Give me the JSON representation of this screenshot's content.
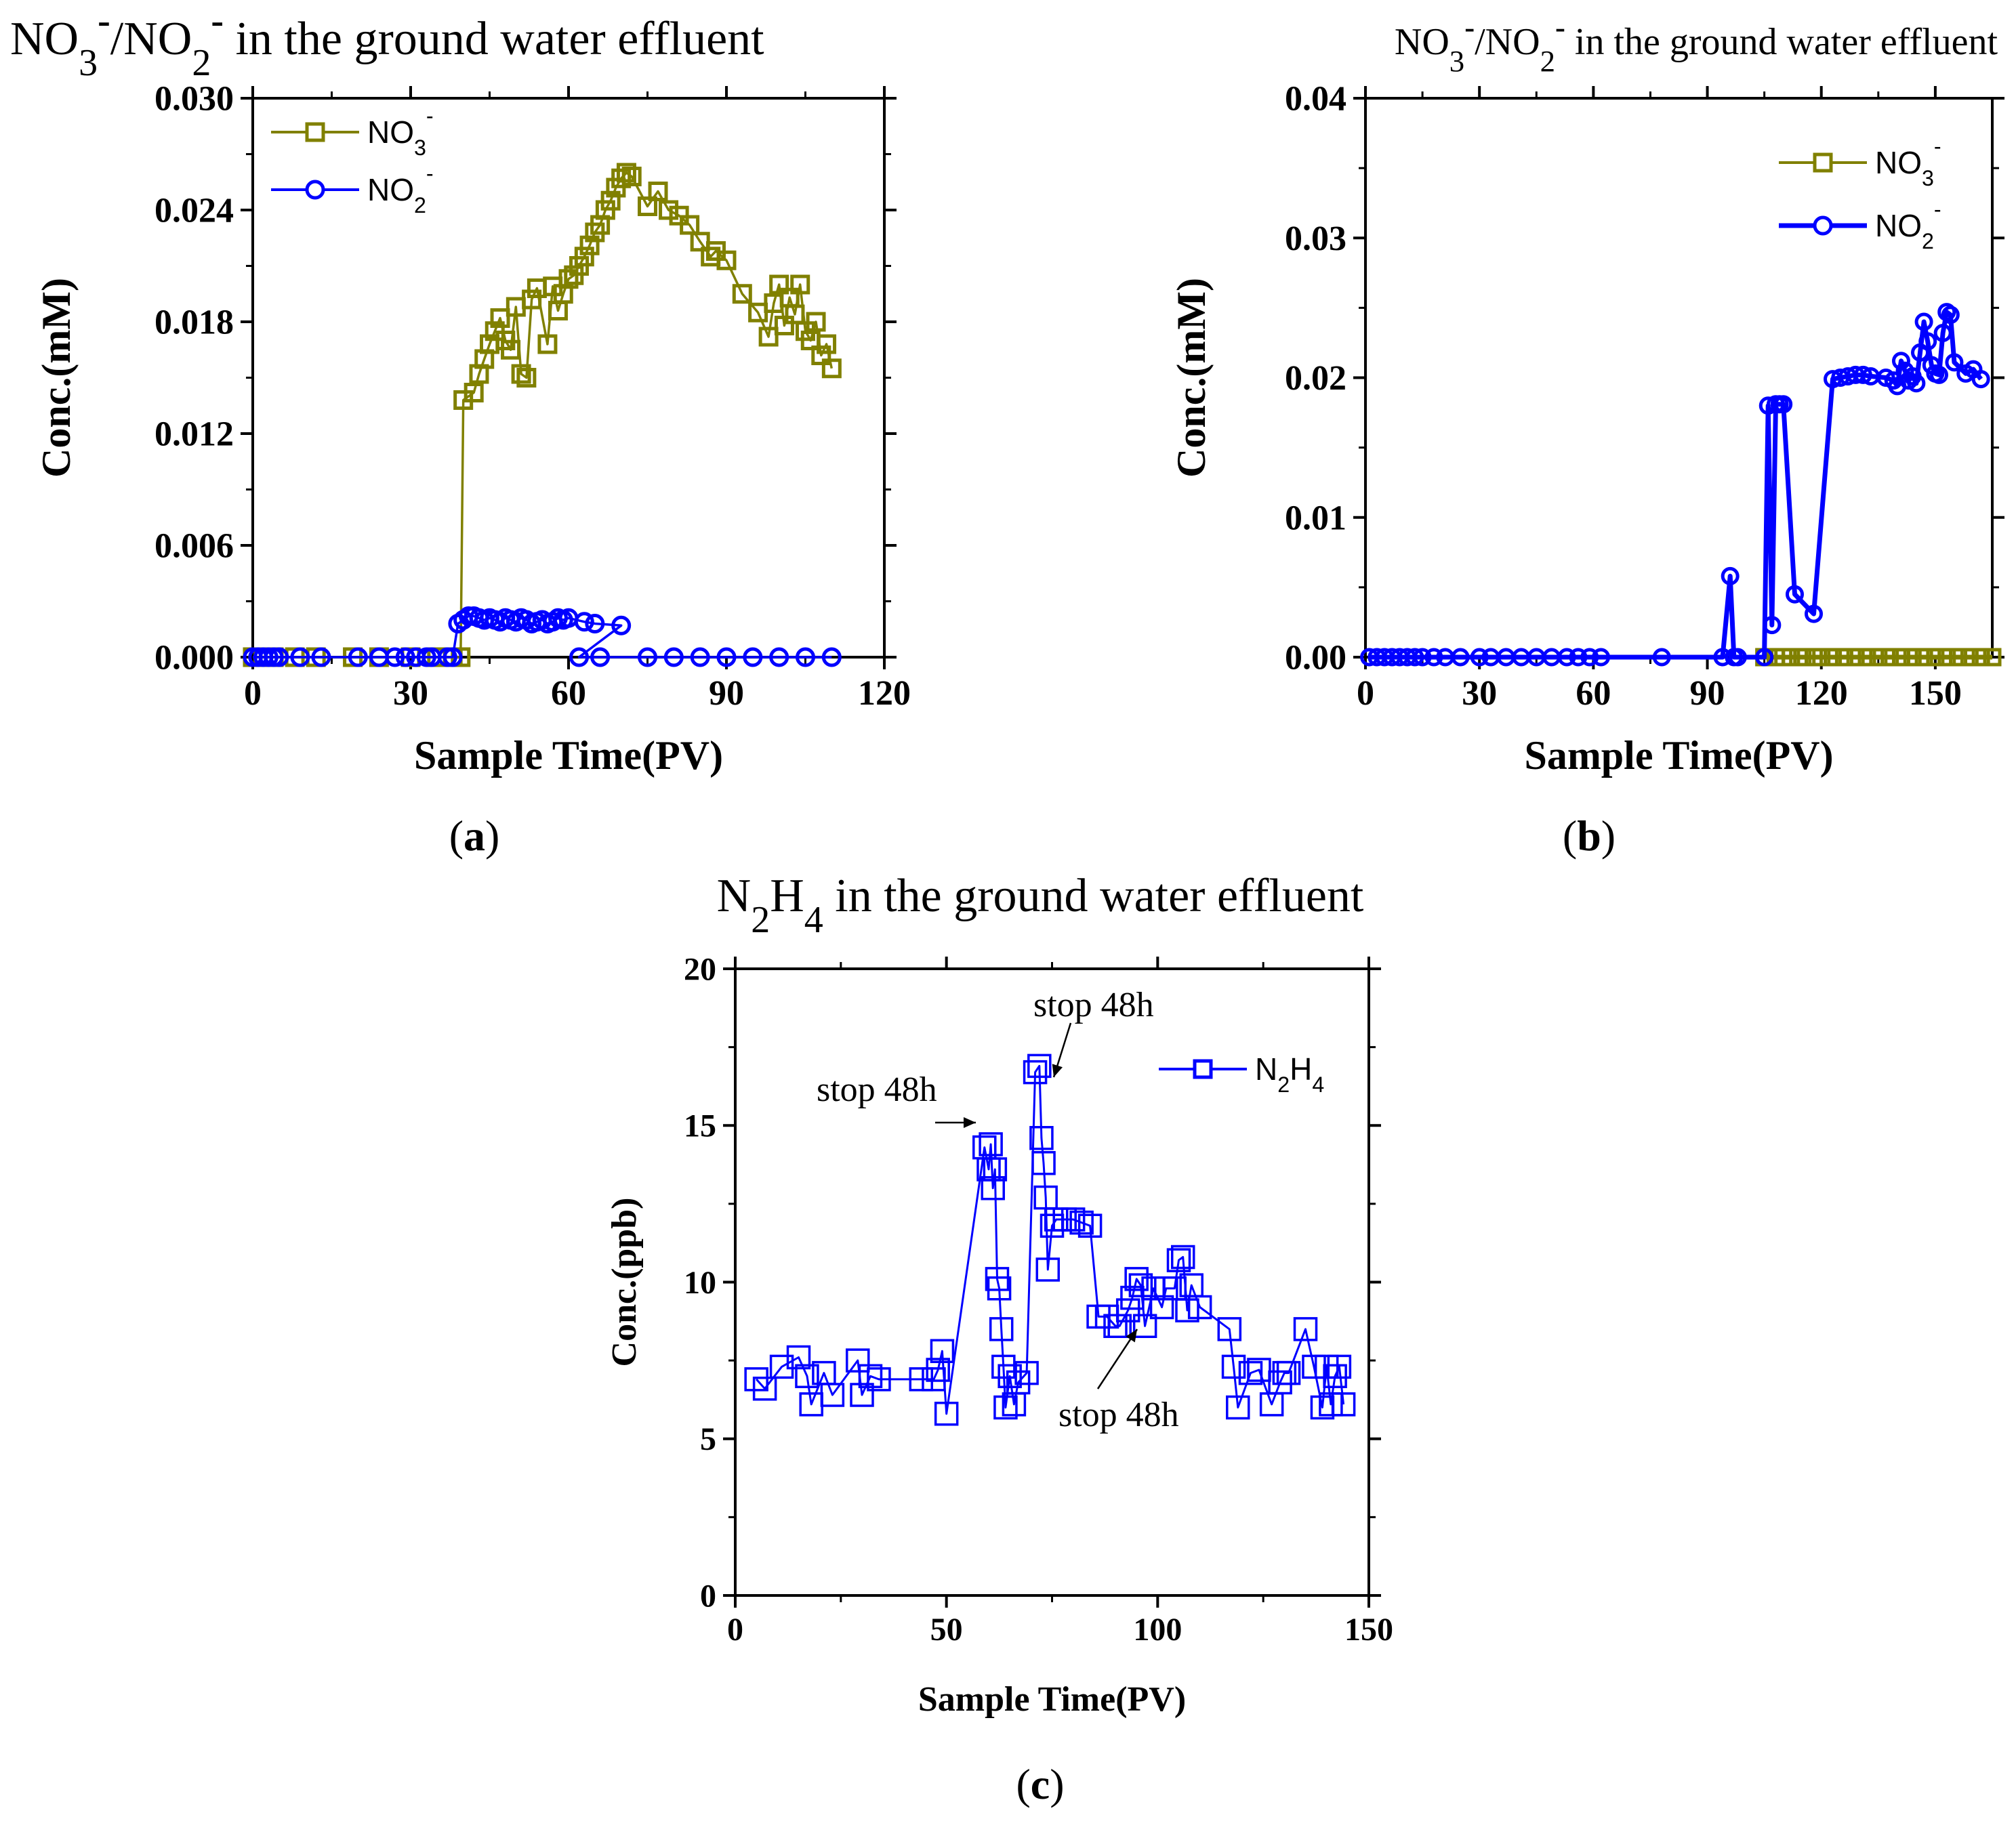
{
  "figure": {
    "panel_labels": [
      "(a)",
      "(b)",
      "(c)"
    ]
  },
  "chart_data": [
    {
      "panel": "a",
      "type": "line",
      "title": "NO3⁻/NO2⁻ in the ground water effluent",
      "title_parts": {
        "pre": "NO",
        "sub1": "3",
        "sup1": "-",
        "mid": "/NO",
        "sub2": "2",
        "sup2": "-",
        "post": " in the ground water effluent"
      },
      "xlabel": "Sample Time(PV)",
      "ylabel": "Conc.(mM)",
      "xlim": [
        0,
        120
      ],
      "ylim": [
        0,
        0.03
      ],
      "xticks": [
        "0",
        "30",
        "60",
        "90",
        "120"
      ],
      "yticks": [
        "0.000",
        "0.006",
        "0.012",
        "0.018",
        "0.024",
        "0.030"
      ],
      "legend": [
        {
          "label": "NO",
          "sub": "3",
          "sup": "-",
          "color": "#808000",
          "marker": "square"
        },
        {
          "label": "NO",
          "sub": "2",
          "sup": "-",
          "color": "#0000ff",
          "marker": "circle"
        }
      ],
      "legend_position": "top-left",
      "series": [
        {
          "name": "NO3-",
          "color": "#808000",
          "marker": "square",
          "x": [
            0,
            2,
            4,
            8,
            12,
            19,
            24,
            30,
            35,
            38,
            39.5,
            40,
            42,
            43,
            44,
            45,
            46,
            47,
            48,
            49,
            50,
            51,
            52,
            53,
            54,
            56,
            57,
            58,
            59,
            60,
            61,
            62,
            63,
            64,
            65,
            66,
            67,
            68,
            69,
            70,
            71,
            72,
            75,
            77,
            79,
            81,
            83,
            85,
            87,
            88,
            90,
            93,
            96,
            98,
            99,
            100,
            101,
            102,
            103,
            104,
            105,
            106,
            107,
            108,
            109,
            110
          ],
          "y": [
            0,
            0,
            0,
            0,
            0,
            0,
            0,
            0,
            0,
            0,
            0,
            0.0138,
            0.0142,
            0.0152,
            0.016,
            0.0168,
            0.0175,
            0.0182,
            0.017,
            0.0165,
            0.0188,
            0.0152,
            0.015,
            0.0192,
            0.0198,
            0.0168,
            0.0199,
            0.0186,
            0.0195,
            0.0203,
            0.0205,
            0.021,
            0.0215,
            0.0221,
            0.0228,
            0.0232,
            0.024,
            0.0245,
            0.0252,
            0.0257,
            0.026,
            0.0258,
            0.0242,
            0.025,
            0.024,
            0.0237,
            0.0232,
            0.0223,
            0.0215,
            0.0218,
            0.0213,
            0.0195,
            0.0185,
            0.0172,
            0.019,
            0.02,
            0.0178,
            0.0193,
            0.0184,
            0.02,
            0.0175,
            0.017,
            0.018,
            0.0162,
            0.0168,
            0.0155
          ]
        },
        {
          "name": "NO2-",
          "color": "#0000ff",
          "marker": "circle",
          "x": [
            0,
            1,
            2,
            3,
            4,
            5,
            9,
            13,
            20,
            24,
            27,
            29,
            31,
            33,
            34,
            37,
            38,
            39,
            40,
            41,
            42,
            43,
            44,
            45,
            46,
            47,
            48,
            49,
            50,
            51,
            52,
            53,
            54,
            55,
            56,
            57,
            58,
            59,
            60,
            63,
            65,
            70,
            62,
            66,
            75,
            80,
            85,
            90,
            95,
            100,
            105,
            110
          ],
          "y": [
            0,
            0,
            0,
            0,
            0,
            0,
            0,
            0,
            0,
            0,
            0,
            0,
            0,
            0,
            0,
            0,
            0,
            0.0018,
            0.002,
            0.0022,
            0.0022,
            0.0021,
            0.002,
            0.0021,
            0.002,
            0.0019,
            0.0021,
            0.002,
            0.0019,
            0.0021,
            0.002,
            0.0018,
            0.0019,
            0.002,
            0.0018,
            0.0019,
            0.0021,
            0.002,
            0.0021,
            0.0019,
            0.0018,
            0.0017,
            0,
            0,
            0,
            0,
            0,
            0,
            0,
            0,
            0,
            0
          ]
        }
      ]
    },
    {
      "panel": "b",
      "type": "line",
      "title": "NO3⁻/NO2⁻ in the ground water effluent",
      "title_parts": {
        "pre": "NO",
        "sub1": "3",
        "sup1": "-",
        "mid": "/NO",
        "sub2": "2",
        "sup2": "-",
        "post": " in the ground water effluent"
      },
      "xlabel": "Sample Time(PV)",
      "ylabel": "Conc.(mM)",
      "xlim": [
        0,
        165
      ],
      "ylim": [
        0,
        0.04
      ],
      "xticks": [
        "0",
        "30",
        "60",
        "90",
        "120",
        "150"
      ],
      "yticks": [
        "0.00",
        "0.01",
        "0.02",
        "0.03",
        "0.04"
      ],
      "legend": [
        {
          "label": "NO",
          "sub": "3",
          "sup": "-",
          "color": "#808000",
          "marker": "square"
        },
        {
          "label": "NO",
          "sub": "2",
          "sup": "-",
          "color": "#0000ff",
          "marker": "circle"
        }
      ],
      "legend_position": "top-right",
      "series": [
        {
          "name": "NO3-",
          "color": "#808000",
          "marker": "square",
          "x": [
            105,
            108,
            110,
            112,
            115,
            118,
            120,
            123,
            126,
            129,
            132,
            135,
            138,
            141,
            144,
            147,
            150,
            153,
            156,
            159,
            162,
            165
          ],
          "y": [
            0,
            0,
            0,
            0,
            0,
            0,
            0,
            0,
            0,
            0,
            0,
            0,
            0,
            0,
            0,
            0,
            0,
            0,
            0,
            0,
            0,
            0
          ]
        },
        {
          "name": "NO2-",
          "color": "#0000ff",
          "marker": "circle",
          "x": [
            1,
            3,
            5,
            7,
            9,
            11,
            13,
            15,
            18,
            21,
            25,
            30,
            33,
            37,
            41,
            45,
            49,
            53,
            56,
            59,
            62,
            78,
            94,
            96,
            97,
            98,
            105,
            106,
            107,
            108,
            109,
            110,
            113,
            118,
            123,
            125,
            127,
            129,
            131,
            133,
            137,
            139,
            140,
            141,
            142,
            143,
            144,
            145,
            146,
            147,
            148,
            149,
            150,
            151,
            152,
            153,
            154,
            155,
            158,
            160,
            162
          ],
          "y": [
            0,
            0,
            0,
            0,
            0,
            0,
            0,
            0,
            0,
            0,
            0,
            0,
            0,
            0,
            0,
            0,
            0,
            0,
            0,
            0,
            0,
            0,
            0,
            0.0058,
            0,
            0,
            0,
            0.018,
            0.0023,
            0.0181,
            0.0181,
            0.0181,
            0.0045,
            0.0031,
            0.0199,
            0.02,
            0.0201,
            0.0202,
            0.0202,
            0.0201,
            0.02,
            0.0198,
            0.0194,
            0.0212,
            0.0205,
            0.0198,
            0.0201,
            0.0196,
            0.0218,
            0.024,
            0.0226,
            0.0209,
            0.0203,
            0.0202,
            0.0232,
            0.0247,
            0.0245,
            0.0211,
            0.0203,
            0.0206,
            0.0199
          ]
        }
      ]
    },
    {
      "panel": "c",
      "type": "line",
      "title": "N2H4 in the ground water effluent",
      "title_parts": {
        "pre": "N",
        "sub1": "2",
        "mid": "H",
        "sub2": "4",
        "post": " in the ground water effluent"
      },
      "xlabel": "Sample Time(PV)",
      "ylabel": "Conc.(ppb)",
      "xlim": [
        0,
        150
      ],
      "ylim": [
        0,
        20
      ],
      "xticks": [
        "0",
        "50",
        "100",
        "150"
      ],
      "yticks": [
        "0",
        "5",
        "10",
        "15",
        "20"
      ],
      "legend": [
        {
          "label": "N",
          "sub": "2",
          "mid": "H",
          "sub2": "4",
          "color": "#0000ff",
          "marker": "square"
        }
      ],
      "legend_position": "top-right",
      "annotations": [
        {
          "text": "stop 48h",
          "x": 60,
          "y": 15
        },
        {
          "text": "stop 48h",
          "x": 72,
          "y": 16.8
        },
        {
          "text": "stop 48h",
          "x": 94,
          "y": 8.5
        }
      ],
      "series": [
        {
          "name": "N2H4",
          "color": "#0000ff",
          "marker": "square",
          "x": [
            5,
            7,
            11,
            15,
            17,
            18,
            21,
            23,
            29,
            30,
            32,
            34,
            44,
            47,
            48,
            49,
            50,
            59,
            60,
            60.5,
            61,
            61.5,
            62,
            62.5,
            63,
            63.5,
            64,
            65,
            66,
            67,
            69,
            71,
            72,
            72.5,
            73,
            73.5,
            74,
            75,
            76,
            78,
            80,
            82,
            84,
            86,
            88,
            90,
            91,
            93,
            94,
            95,
            96,
            97,
            99,
            101,
            102,
            104,
            105,
            106,
            107,
            108,
            110,
            117,
            118,
            119,
            122,
            124,
            127,
            129,
            130,
            131,
            135,
            137,
            139,
            140,
            141,
            142,
            143,
            144
          ],
          "y": [
            6.9,
            6.6,
            7.3,
            7.6,
            7.0,
            6.1,
            7.1,
            6.4,
            7.5,
            6.4,
            7.0,
            6.9,
            6.9,
            6.9,
            7.2,
            7.8,
            5.8,
            14.3,
            13.6,
            14.4,
            13.0,
            13.6,
            10.1,
            9.8,
            8.5,
            7.3,
            6.0,
            7.0,
            6.1,
            6.8,
            7.1,
            16.7,
            16.9,
            14.6,
            13.8,
            12.7,
            10.4,
            11.8,
            12.0,
            12.0,
            12.0,
            11.9,
            11.8,
            8.9,
            8.9,
            8.6,
            8.6,
            9.1,
            9.5,
            10.1,
            9.9,
            8.6,
            9.8,
            9.2,
            9.8,
            9.8,
            10.7,
            10.8,
            9.1,
            9.9,
            9.2,
            8.5,
            7.3,
            6.0,
            7.1,
            7.2,
            6.1,
            6.8,
            7.1,
            7.1,
            8.5,
            7.3,
            6.0,
            7.3,
            6.1,
            7.0,
            7.3,
            6.1
          ]
        }
      ]
    }
  ]
}
